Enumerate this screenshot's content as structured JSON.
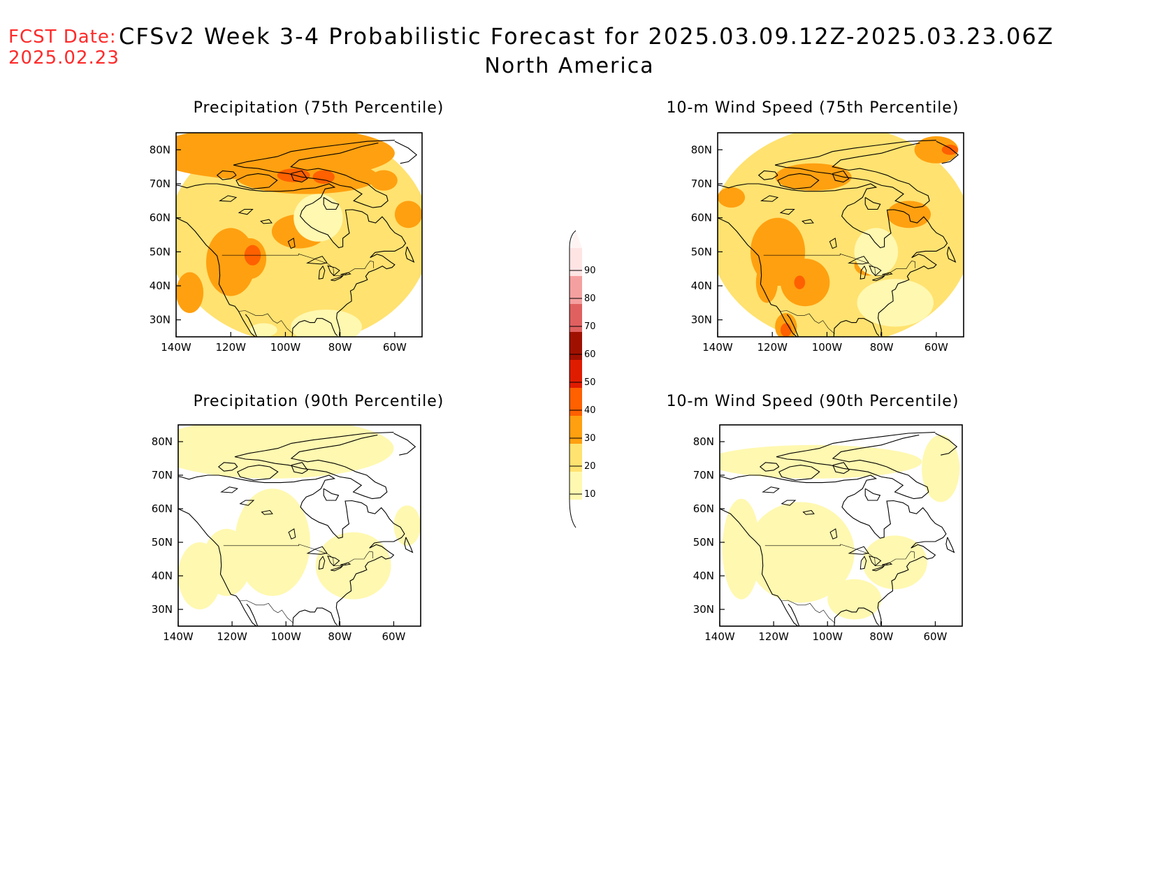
{
  "header": {
    "fcst_label": "FCST Date:",
    "fcst_date": "2025.02.23",
    "title": "CFSv2 Week 3-4 Probabilistic Forecast for 2025.03.09.12Z-2025.03.23.06Z",
    "subtitle": "North America"
  },
  "colors": {
    "levels": [
      {
        "min": 10,
        "color": "#fff8b0"
      },
      {
        "min": 20,
        "color": "#ffe270"
      },
      {
        "min": 30,
        "color": "#ffa010"
      },
      {
        "min": 40,
        "color": "#ff6000"
      },
      {
        "min": 50,
        "color": "#e01c00"
      },
      {
        "min": 60,
        "color": "#a01000"
      },
      {
        "min": 70,
        "color": "#e06060"
      },
      {
        "min": 80,
        "color": "#f5a0a0"
      },
      {
        "min": 90,
        "color": "#ffe4e4"
      }
    ]
  },
  "colorbar": {
    "ticks": [
      "10",
      "20",
      "30",
      "40",
      "50",
      "60",
      "70",
      "80",
      "90"
    ]
  },
  "axes": {
    "lon_ticks": [
      "140W",
      "120W",
      "100W",
      "80W",
      "60W"
    ],
    "lon_values": [
      -140,
      -120,
      -100,
      -80,
      -60
    ],
    "lat_ticks": [
      "30N",
      "40N",
      "50N",
      "60N",
      "70N",
      "80N"
    ],
    "lat_values": [
      30,
      40,
      50,
      60,
      70,
      80
    ],
    "lon_range": [
      -140,
      -50
    ],
    "lat_range": [
      25,
      85
    ]
  },
  "panels": [
    {
      "title": "Precipitation (75th Percentile)",
      "regions": [
        {
          "lon": -95,
          "lat": 55,
          "rx": 48,
          "ry": 32,
          "value": 20
        },
        {
          "lon": -105,
          "lat": 79,
          "rx": 45,
          "ry": 8,
          "value": 30
        },
        {
          "lon": -92,
          "lat": 72,
          "rx": 26,
          "ry": 5,
          "value": 30
        },
        {
          "lon": -97,
          "lat": 72.5,
          "rx": 6,
          "ry": 2,
          "value": 40
        },
        {
          "lon": -86,
          "lat": 72,
          "rx": 4,
          "ry": 2,
          "value": 40
        },
        {
          "lon": -120,
          "lat": 47,
          "rx": 9,
          "ry": 10,
          "value": 30
        },
        {
          "lon": -113,
          "lat": 48,
          "rx": 6,
          "ry": 6,
          "value": 30
        },
        {
          "lon": -112,
          "lat": 49,
          "rx": 3,
          "ry": 3,
          "value": 40
        },
        {
          "lon": -135,
          "lat": 38,
          "rx": 5,
          "ry": 6,
          "value": 30
        },
        {
          "lon": -95,
          "lat": 56,
          "rx": 10,
          "ry": 5,
          "value": 30
        },
        {
          "lon": -55,
          "lat": 61,
          "rx": 5,
          "ry": 4,
          "value": 30
        },
        {
          "lon": -64,
          "lat": 71,
          "rx": 5,
          "ry": 3,
          "value": 30
        },
        {
          "lon": -88,
          "lat": 60,
          "rx": 9,
          "ry": 7,
          "value": 10
        },
        {
          "lon": -85,
          "lat": 28,
          "rx": 13,
          "ry": 5,
          "value": 10
        },
        {
          "lon": -108,
          "lat": 27,
          "rx": 5,
          "ry": 2,
          "value": 10
        }
      ]
    },
    {
      "title": "10-m Wind Speed (75th Percentile)",
      "regions": [
        {
          "lon": -95,
          "lat": 55,
          "rx": 48,
          "ry": 32,
          "value": 20
        },
        {
          "lon": -118,
          "lat": 50,
          "rx": 10,
          "ry": 10,
          "value": 30
        },
        {
          "lon": -108,
          "lat": 41,
          "rx": 9,
          "ry": 7,
          "value": 30
        },
        {
          "lon": -122,
          "lat": 41,
          "rx": 4,
          "ry": 6,
          "value": 30
        },
        {
          "lon": -110,
          "lat": 41,
          "rx": 2,
          "ry": 2,
          "value": 40
        },
        {
          "lon": -85,
          "lat": 46,
          "rx": 5,
          "ry": 3,
          "value": 30
        },
        {
          "lon": -115,
          "lat": 28,
          "rx": 4,
          "ry": 4,
          "value": 30
        },
        {
          "lon": -115,
          "lat": 27,
          "rx": 2,
          "ry": 2,
          "value": 40
        },
        {
          "lon": -105,
          "lat": 72,
          "rx": 14,
          "ry": 4,
          "value": 30
        },
        {
          "lon": -60,
          "lat": 80,
          "rx": 8,
          "ry": 4,
          "value": 30
        },
        {
          "lon": -55,
          "lat": 80,
          "rx": 3,
          "ry": 1.5,
          "value": 40
        },
        {
          "lon": -70,
          "lat": 61,
          "rx": 8,
          "ry": 4,
          "value": 30
        },
        {
          "lon": -135,
          "lat": 66,
          "rx": 5,
          "ry": 3,
          "value": 30
        },
        {
          "lon": -75,
          "lat": 35,
          "rx": 14,
          "ry": 7,
          "value": 10
        },
        {
          "lon": -82,
          "lat": 50,
          "rx": 8,
          "ry": 7,
          "value": 10
        }
      ]
    },
    {
      "title": "Precipitation (90th Percentile)",
      "regions": [
        {
          "lon": -105,
          "lat": 78,
          "rx": 45,
          "ry": 9,
          "value": 10
        },
        {
          "lon": -105,
          "lat": 50,
          "rx": 14,
          "ry": 16,
          "value": 10
        },
        {
          "lon": -122,
          "lat": 44,
          "rx": 9,
          "ry": 10,
          "value": 10
        },
        {
          "lon": -75,
          "lat": 43,
          "rx": 14,
          "ry": 10,
          "value": 10
        },
        {
          "lon": -132,
          "lat": 40,
          "rx": 8,
          "ry": 10,
          "value": 10
        },
        {
          "lon": -55,
          "lat": 55,
          "rx": 5,
          "ry": 6,
          "value": 10
        }
      ]
    },
    {
      "title": "10-m Wind Speed (90th Percentile)",
      "regions": [
        {
          "lon": -105,
          "lat": 74,
          "rx": 40,
          "ry": 5,
          "value": 10
        },
        {
          "lon": -110,
          "lat": 47,
          "rx": 20,
          "ry": 15,
          "value": 10
        },
        {
          "lon": -132,
          "lat": 48,
          "rx": 7,
          "ry": 15,
          "value": 10
        },
        {
          "lon": -75,
          "lat": 44,
          "rx": 12,
          "ry": 8,
          "value": 10
        },
        {
          "lon": -58,
          "lat": 72,
          "rx": 7,
          "ry": 10,
          "value": 10
        },
        {
          "lon": -90,
          "lat": 33,
          "rx": 10,
          "ry": 6,
          "value": 10
        }
      ]
    }
  ]
}
